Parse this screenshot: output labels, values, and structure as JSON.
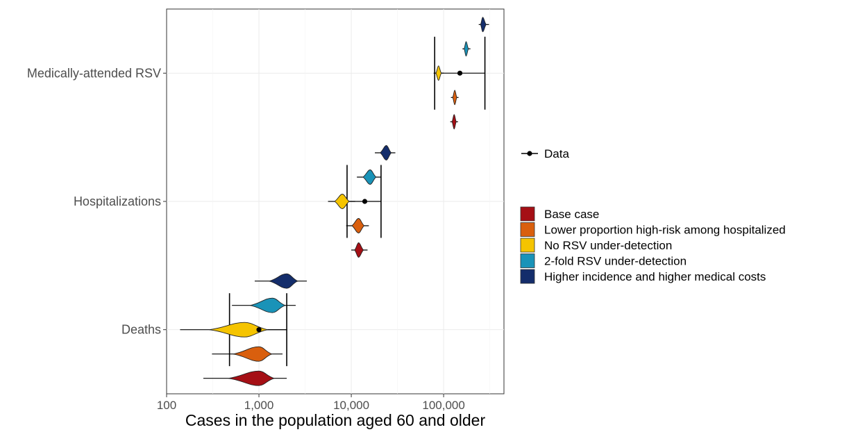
{
  "chart_data": {
    "type": "violin",
    "title": "",
    "xlabel": "Cases in the population aged 60 and older",
    "ylabel": "",
    "x_scale": "log10",
    "xlim": [
      100,
      450000
    ],
    "x_ticks": [
      100,
      1000,
      10000,
      100000
    ],
    "x_tick_labels": [
      "100",
      "1,000",
      "10,000",
      "100,000"
    ],
    "grid": true,
    "categories": [
      "Medically-attended RSV",
      "Hospitalizations",
      "Deaths"
    ],
    "legend_position": "right",
    "data_legend_label": "Data",
    "series": [
      {
        "name": "Base case",
        "color": "#A50F15",
        "medians": [
          130000,
          12000,
          1000
        ],
        "ranges": [
          [
            118000,
            143000
          ],
          [
            10000,
            15000
          ],
          [
            250,
            2000
          ]
        ]
      },
      {
        "name": "Lower proportion high-risk among hospitalized",
        "color": "#D95F0E",
        "medians": [
          132000,
          12000,
          1000
        ],
        "ranges": [
          [
            120000,
            145000
          ],
          [
            8800,
            15500
          ],
          [
            310,
            1800
          ]
        ]
      },
      {
        "name": "No RSV under-detection",
        "color": "#F5C400",
        "medians": [
          88000,
          8000,
          700
        ],
        "ranges": [
          [
            78000,
            100000
          ],
          [
            5600,
            11000
          ],
          [
            140,
            2000
          ]
        ]
      },
      {
        "name": "2-fold RSV under-detection",
        "color": "#1A93B8",
        "medians": [
          175000,
          16000,
          1400
        ],
        "ranges": [
          [
            160000,
            195000
          ],
          [
            11500,
            21000
          ],
          [
            510,
            2500
          ]
        ]
      },
      {
        "name": "Higher incidence and higher medical costs",
        "color": "#142D6B",
        "medians": [
          265000,
          24000,
          2000
        ],
        "ranges": [
          [
            240000,
            310000
          ],
          [
            18000,
            30000
          ],
          [
            900,
            3300
          ]
        ]
      }
    ],
    "observed_data": [
      {
        "category": "Medically-attended RSV",
        "point": 150000,
        "lower": 80000,
        "upper": 280000,
        "ci": [
          80000,
          280000
        ]
      },
      {
        "category": "Hospitalizations",
        "point": 14000,
        "lower": 9000,
        "upper": 21000,
        "ci": [
          9000,
          21000
        ]
      },
      {
        "category": "Deaths",
        "point": 1000,
        "lower": 480,
        "upper": 2000,
        "ci": [
          480,
          2000
        ]
      }
    ]
  }
}
